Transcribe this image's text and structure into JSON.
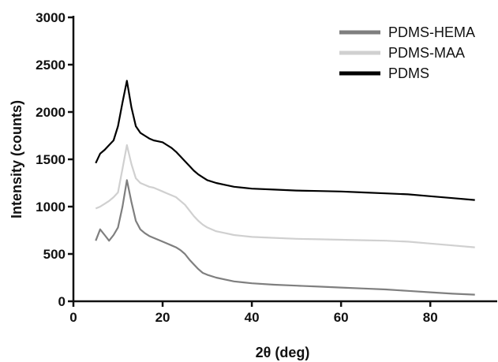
{
  "chart_data": {
    "type": "line",
    "title": "",
    "xlabel": "2θ (deg)",
    "ylabel": "Intensity (counts)",
    "xlim": [
      0,
      95
    ],
    "ylim": [
      0,
      3000
    ],
    "x_ticks": [
      0,
      20,
      40,
      60,
      80
    ],
    "y_ticks": [
      0,
      500,
      1000,
      1500,
      2000,
      2500,
      3000
    ],
    "x_tick_labels": [
      "0",
      "20",
      "40",
      "60",
      "80"
    ],
    "y_tick_labels": [
      "0",
      "500",
      "1000",
      "1500",
      "2000",
      "2500",
      "3000"
    ],
    "grid": false,
    "legend_position": "top-right",
    "x": [
      5,
      6,
      7,
      8,
      9,
      10,
      11,
      12,
      13,
      14,
      15,
      16,
      17,
      18,
      19,
      20,
      21,
      22,
      23,
      24,
      25,
      26,
      27,
      28,
      29,
      30,
      32,
      34,
      36,
      38,
      40,
      45,
      50,
      55,
      60,
      65,
      70,
      75,
      80,
      85,
      90
    ],
    "series": [
      {
        "name": "PDMS-HEMA",
        "color": "#7f7f7f",
        "values": [
          640,
          760,
          700,
          640,
          700,
          780,
          1000,
          1280,
          1050,
          850,
          760,
          720,
          690,
          670,
          650,
          630,
          610,
          590,
          570,
          540,
          500,
          440,
          390,
          340,
          300,
          280,
          250,
          230,
          210,
          200,
          190,
          175,
          165,
          155,
          145,
          135,
          125,
          110,
          95,
          80,
          70
        ]
      },
      {
        "name": "PDMS-MAA",
        "color": "#d0d0d0",
        "values": [
          980,
          1000,
          1030,
          1060,
          1100,
          1150,
          1400,
          1650,
          1450,
          1300,
          1250,
          1230,
          1210,
          1200,
          1180,
          1160,
          1140,
          1120,
          1100,
          1060,
          1020,
          960,
          900,
          850,
          810,
          780,
          740,
          720,
          700,
          690,
          680,
          670,
          660,
          655,
          650,
          645,
          640,
          630,
          610,
          590,
          570
        ]
      },
      {
        "name": "PDMS",
        "color": "#000000",
        "values": [
          1460,
          1560,
          1600,
          1650,
          1700,
          1850,
          2100,
          2330,
          2050,
          1850,
          1780,
          1750,
          1720,
          1700,
          1690,
          1680,
          1650,
          1620,
          1580,
          1530,
          1480,
          1430,
          1380,
          1340,
          1310,
          1280,
          1250,
          1230,
          1210,
          1200,
          1190,
          1180,
          1170,
          1165,
          1160,
          1150,
          1140,
          1130,
          1110,
          1090,
          1070
        ]
      }
    ]
  }
}
